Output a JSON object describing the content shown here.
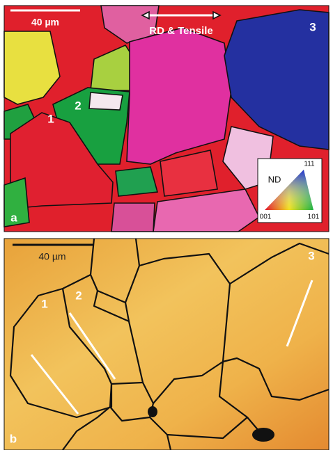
{
  "panel_a": {
    "scale_bar": "40 µm",
    "direction": "RD & Tensile",
    "grain_labels": [
      "1",
      "2",
      "3"
    ],
    "panel_label": "a",
    "legend": {
      "title": "ND",
      "top": "111",
      "left": "001",
      "right": "101"
    }
  },
  "panel_b": {
    "scale_bar": "40 µm",
    "grain_labels": [
      "1",
      "2",
      "3"
    ],
    "panel_label": "b"
  }
}
